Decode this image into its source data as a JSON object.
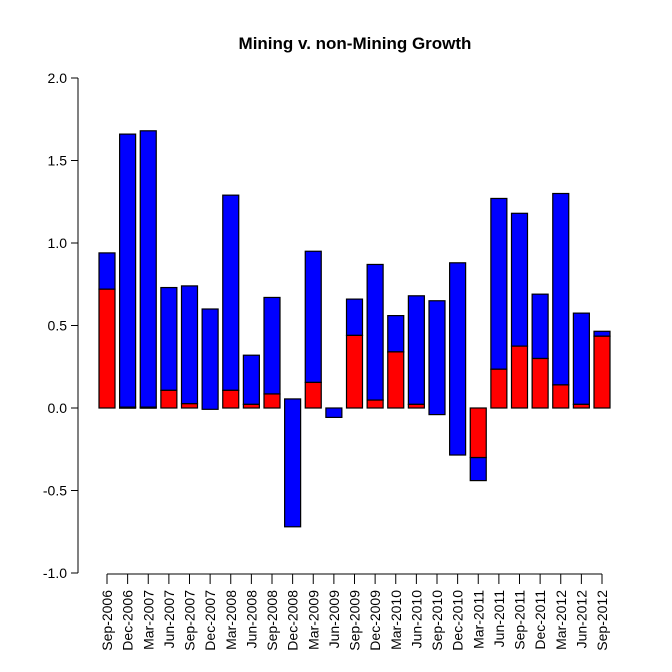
{
  "chart_data": {
    "type": "bar",
    "stacked": true,
    "title": "Mining v. non-Mining Growth",
    "xlabel": "",
    "ylabel": "",
    "ylim": [
      -1.0,
      2.0
    ],
    "yticks": [
      "-1.0",
      "-0.5",
      "0.0",
      "0.5",
      "1.0",
      "1.5",
      "2.0"
    ],
    "ytick_values": [
      -1.0,
      -0.5,
      0.0,
      0.5,
      1.0,
      1.5,
      2.0
    ],
    "grid": false,
    "legend": null,
    "colors": {
      "mining": "#ff0000",
      "non_mining": "#0000ff",
      "border": "#000000"
    },
    "categories": [
      "Sep-2006",
      "Dec-2006",
      "Mar-2007",
      "Jun-2007",
      "Sep-2007",
      "Dec-2007",
      "Mar-2008",
      "Jun-2008",
      "Sep-2008",
      "Dec-2008",
      "Mar-2009",
      "Jun-2009",
      "Sep-2009",
      "Dec-2009",
      "Mar-2010",
      "Jun-2010",
      "Sep-2010",
      "Dec-2010",
      "Mar-2011",
      "Jun-2011",
      "Sep-2011",
      "Dec-2011",
      "Mar-2012",
      "Jun-2012",
      "Sep-2012"
    ],
    "series": [
      {
        "name": "Mining",
        "color": "#ff0000",
        "values": [
          0.72,
          0.005,
          0.005,
          0.107,
          0.026,
          0.0,
          0.107,
          0.022,
          0.085,
          0.0,
          0.155,
          0.0,
          0.44,
          0.048,
          0.34,
          0.022,
          0.0,
          0.0,
          -0.3,
          0.235,
          0.375,
          0.3,
          0.14,
          0.022,
          0.435
        ]
      },
      {
        "name": "Non-Mining",
        "color": "#0000ff",
        "ranges": [
          [
            0.72,
            0.94
          ],
          [
            0.005,
            1.66
          ],
          [
            0.005,
            1.68
          ],
          [
            0.107,
            0.73
          ],
          [
            0.026,
            0.74
          ],
          [
            -0.008,
            0.6
          ],
          [
            0.107,
            1.29
          ],
          [
            0.022,
            0.32
          ],
          [
            0.085,
            0.67
          ],
          [
            -0.72,
            0.055
          ],
          [
            0.155,
            0.95
          ],
          [
            -0.057,
            0.0
          ],
          [
            0.44,
            0.66
          ],
          [
            0.048,
            0.87
          ],
          [
            0.34,
            0.56
          ],
          [
            0.022,
            0.68
          ],
          [
            -0.04,
            0.65
          ],
          [
            -0.285,
            0.88
          ],
          [
            -0.44,
            -0.3
          ],
          [
            0.235,
            1.27
          ],
          [
            0.375,
            1.18
          ],
          [
            0.3,
            0.69
          ],
          [
            0.14,
            1.3
          ],
          [
            0.022,
            0.575
          ],
          [
            0.435,
            0.465
          ]
        ]
      }
    ]
  }
}
